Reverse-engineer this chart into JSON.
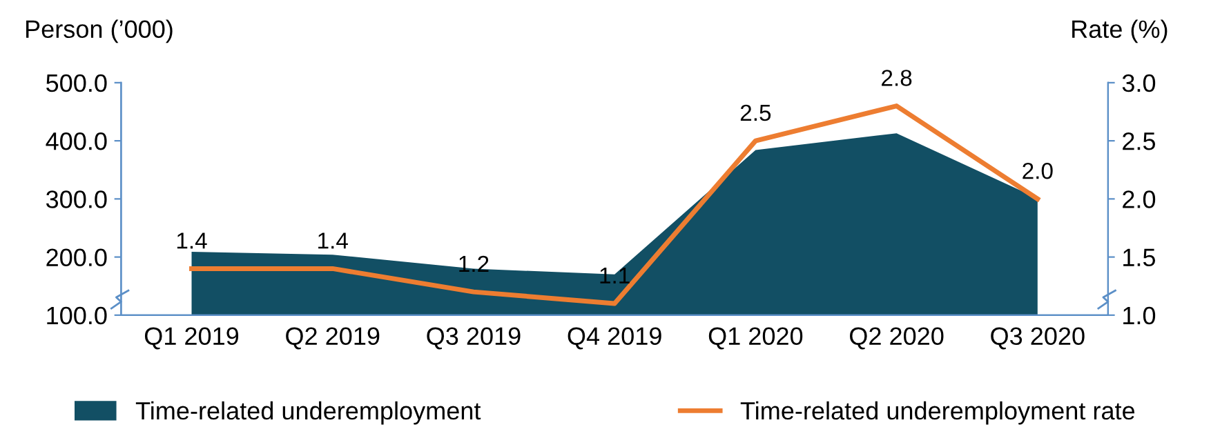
{
  "chart_data": {
    "type": "area",
    "categories": [
      "Q1 2019",
      "Q2 2019",
      "Q3 2019",
      "Q4 2019",
      "Q1 2020",
      "Q2 2020",
      "Q3 2020"
    ],
    "ylabel": "Person (’000)",
    "y2label": "Rate (%)",
    "ylim": [
      100,
      500
    ],
    "yticks": [
      {
        "value": 100,
        "label": "100.0"
      },
      {
        "value": 200,
        "label": "200.0"
      },
      {
        "value": 300,
        "label": "300.0"
      },
      {
        "value": 400,
        "label": "400.0"
      },
      {
        "value": 500,
        "label": "500.0"
      }
    ],
    "y2lim": [
      1.0,
      3.0
    ],
    "y2ticks": [
      {
        "value": 1.0,
        "label": "1.0"
      },
      {
        "value": 1.5,
        "label": "1.5"
      },
      {
        "value": 2.0,
        "label": "2.0"
      },
      {
        "value": 2.5,
        "label": "2.5"
      },
      {
        "value": 3.0,
        "label": "3.0"
      }
    ],
    "series": [
      {
        "name": "Time-related underemployment",
        "color": "#124f64",
        "values": [
          209,
          204,
          180,
          170,
          384,
          413,
          301
        ]
      },
      {
        "name": "Time-related underemployment rate",
        "type": "line",
        "axis": "y2",
        "color": "#ed7d31",
        "values": [
          1.4,
          1.4,
          1.2,
          1.1,
          2.5,
          2.8,
          2.0
        ],
        "value_labels": [
          "1.4",
          "1.4",
          "1.2",
          "1.1",
          "2.5",
          "2.8",
          "2.0"
        ]
      }
    ],
    "grid": false,
    "legend": "bottom",
    "marker": "none",
    "line_style": "solid"
  }
}
